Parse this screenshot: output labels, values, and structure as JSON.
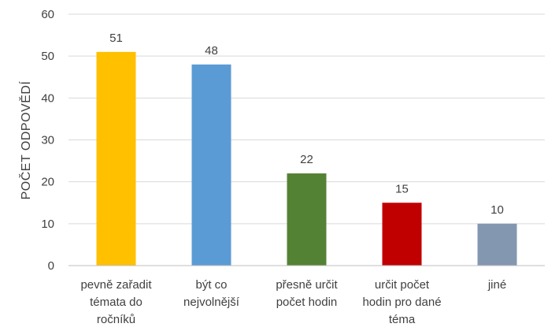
{
  "chart_data": {
    "type": "bar",
    "title": "",
    "xlabel": "",
    "ylabel": "POČET ODPOVĚDÍ",
    "ylim": [
      0,
      60
    ],
    "yticks": [
      0,
      10,
      20,
      30,
      40,
      50,
      60
    ],
    "grid": true,
    "legend": "none",
    "categories": [
      [
        "pevně zařadit",
        "témata do",
        "ročníků"
      ],
      [
        "být co",
        "nejvolnější"
      ],
      [
        "přesně určit",
        "počet hodin"
      ],
      [
        "určit počet",
        "hodin pro dané",
        "téma"
      ],
      [
        "jiné"
      ]
    ],
    "values": [
      51,
      48,
      22,
      15,
      10
    ],
    "colors": [
      "#FFC000",
      "#5B9BD5",
      "#548235",
      "#C00000",
      "#8497B0"
    ]
  }
}
